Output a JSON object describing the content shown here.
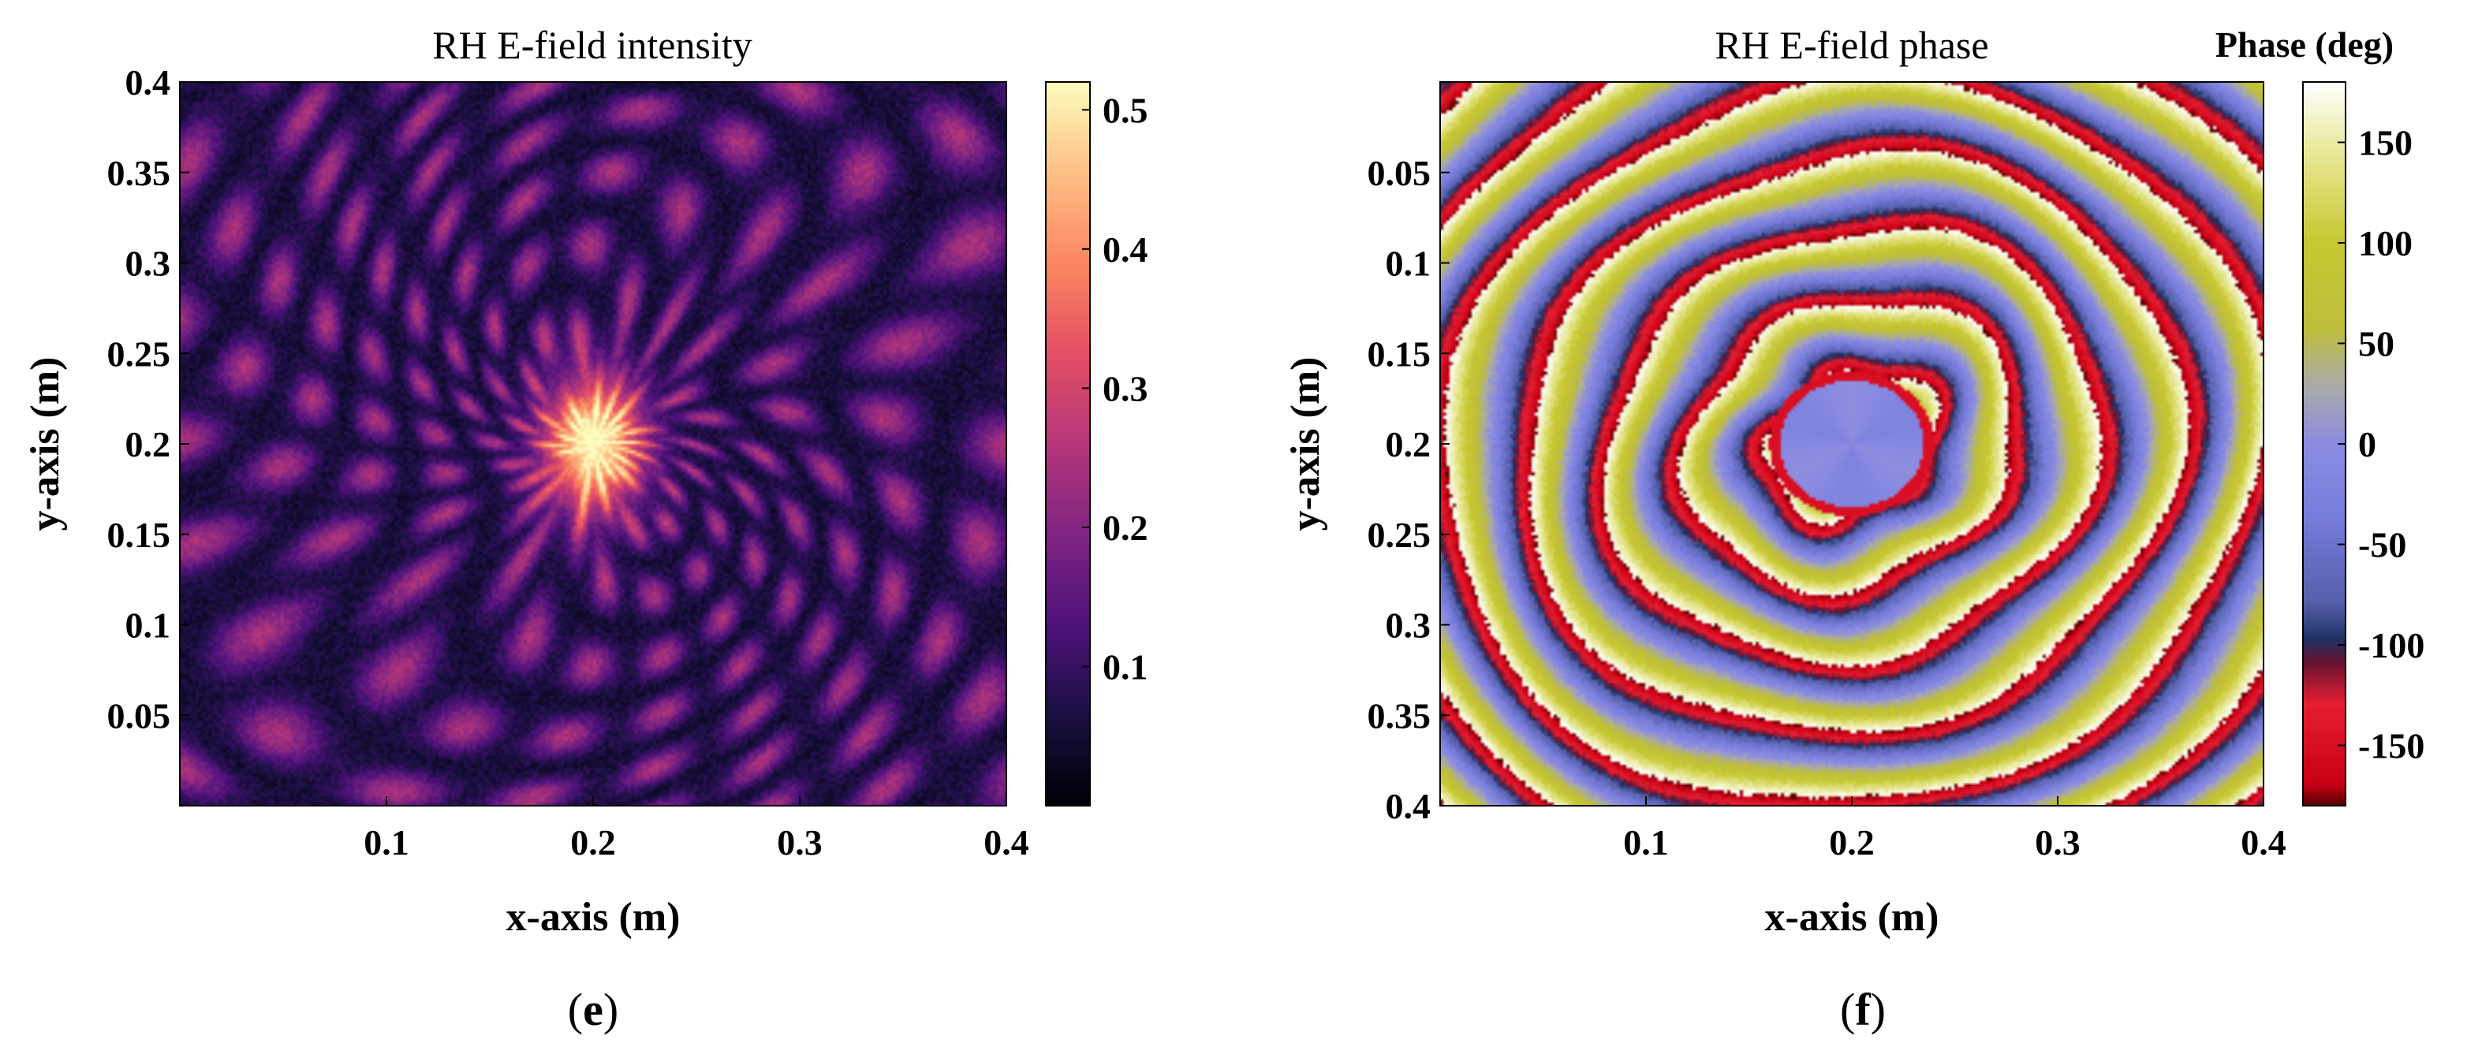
{
  "chart_data": [
    {
      "type": "heatmap",
      "panel": "e",
      "title": "RH E-field intensity",
      "xlabel": "x-axis (m)",
      "ylabel": "y-axis (m)",
      "xlim": [
        0.0,
        0.4
      ],
      "ylim": [
        0.0,
        0.4
      ],
      "x_ticks": [
        0.1,
        0.2,
        0.3,
        0.4
      ],
      "x_tick_labels": [
        "0.1",
        "0.2",
        "0.3",
        "0.4"
      ],
      "y_ticks": [
        0.05,
        0.1,
        0.15,
        0.2,
        0.25,
        0.3,
        0.35,
        0.4
      ],
      "y_tick_labels": [
        "0.05",
        "0.1",
        "0.15",
        "0.2",
        "0.25",
        "0.3",
        "0.35",
        "0.4"
      ],
      "y_direction": "normal",
      "colormap": "magma",
      "colorbar": {
        "range": [
          0.0,
          0.52
        ],
        "ticks": [
          0.1,
          0.2,
          0.3,
          0.4,
          0.5
        ],
        "tick_labels": [
          "0.1",
          "0.2",
          "0.3",
          "0.4",
          "0.5"
        ]
      },
      "peak": {
        "x": 0.2,
        "y": 0.2,
        "value": 0.5
      },
      "ring_spacing": 0.04
    },
    {
      "type": "heatmap",
      "panel": "f",
      "title": "RH E-field phase",
      "xlabel": "x-axis (m)",
      "ylabel": "y-axis (m)",
      "xlim": [
        0.0,
        0.4
      ],
      "ylim": [
        0.0,
        0.4
      ],
      "x_ticks": [
        0.1,
        0.2,
        0.3,
        0.4
      ],
      "x_tick_labels": [
        "0.1",
        "0.2",
        "0.3",
        "0.4"
      ],
      "y_ticks": [
        0.05,
        0.1,
        0.15,
        0.2,
        0.25,
        0.3,
        0.35,
        0.4
      ],
      "y_tick_labels": [
        "0.05",
        "0.1",
        "0.15",
        "0.2",
        "0.25",
        "0.3",
        "0.35",
        "0.4"
      ],
      "y_direction": "reverse",
      "colormap": "phase",
      "colorbar": {
        "title": "Phase (deg)",
        "range": [
          -180,
          180
        ],
        "ticks": [
          150,
          100,
          50,
          0,
          -50,
          -100,
          -150
        ],
        "tick_labels": [
          "150",
          "100",
          "50",
          "0",
          "-50",
          "-100",
          "-150"
        ]
      },
      "center": {
        "x": 0.2,
        "y": 0.2
      },
      "ring_spacing": 0.04
    }
  ],
  "panel_labels": {
    "e": {
      "open": "(",
      "letter": "e",
      "close": ")"
    },
    "f": {
      "open": "(",
      "letter": "f",
      "close": ")"
    }
  }
}
